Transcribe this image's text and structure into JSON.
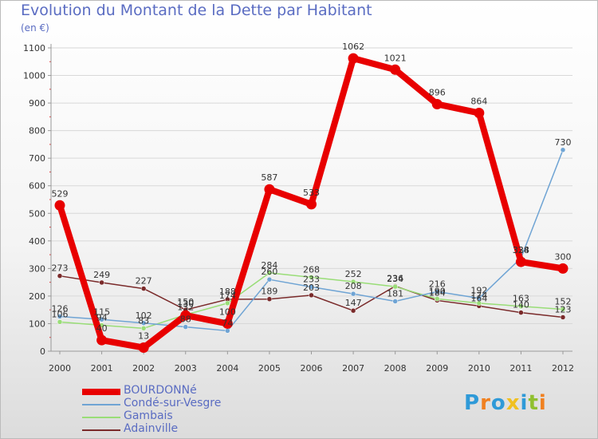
{
  "title": "Evolution du Montant de la Dette par Habitant",
  "subtitle": "(en €)",
  "logo": [
    "P",
    "r",
    "o",
    "x",
    "i",
    "t",
    "i"
  ],
  "logo_colors": [
    "#2f9ad8",
    "#f08020",
    "#2f9ad8",
    "#f0c020",
    "#2f9ad8",
    "#90c030",
    "#f08020"
  ],
  "chart_data": {
    "type": "line",
    "title": "Evolution du Montant de la Dette par Habitant",
    "ylabel": "(en €)",
    "xlabel": "",
    "ylim": [
      0,
      1100
    ],
    "yticks": [
      "0",
      "100",
      "200",
      "300",
      "400",
      "500",
      "600",
      "700",
      "800",
      "900",
      "1000",
      "1100"
    ],
    "x": [
      "2000",
      "2001",
      "2002",
      "2003",
      "2004",
      "2005",
      "2006",
      "2007",
      "2008",
      "2009",
      "2010",
      "2011",
      "2012"
    ],
    "series": [
      {
        "name": "BOURDONNé",
        "color": "#e80000",
        "values": [
          529,
          40,
          13,
          130,
          100,
          587,
          533,
          1062,
          1021,
          896,
          864,
          324,
          300
        ],
        "labels": [
          "529",
          "40",
          "13",
          "130",
          "100",
          "587",
          "533",
          "1062",
          "1021",
          "896",
          "864",
          "324",
          "300"
        ]
      },
      {
        "name": "Condé-sur-Vesgre",
        "color": "#6fa4d4",
        "values": [
          126,
          115,
          102,
          88,
          74,
          260,
          233,
          208,
          181,
          216,
          192,
          338,
          730
        ],
        "labels": [
          "126",
          "115",
          "102",
          "88",
          "74",
          "260",
          "233",
          "208",
          "181",
          "216",
          "192",
          "338",
          "730"
        ]
      },
      {
        "name": "Gambais",
        "color": "#99dd77",
        "values": [
          106,
          94,
          83,
          132,
          174,
          284,
          268,
          252,
          234,
          190,
          174,
          163,
          152
        ],
        "labels": [
          "106",
          "94",
          "83",
          "132",
          "174",
          "284",
          "268",
          "252",
          "234",
          "190",
          "174",
          "163",
          "152"
        ]
      },
      {
        "name": "Adainville",
        "color": "#7a2a2a",
        "values": [
          273,
          249,
          227,
          150,
          188,
          189,
          203,
          147,
          236,
          184,
          164,
          140,
          123
        ],
        "labels": [
          "273",
          "249",
          "227",
          "150",
          "188",
          "189",
          "203",
          "147",
          "236",
          "184",
          "164",
          "140",
          "123"
        ]
      }
    ]
  }
}
